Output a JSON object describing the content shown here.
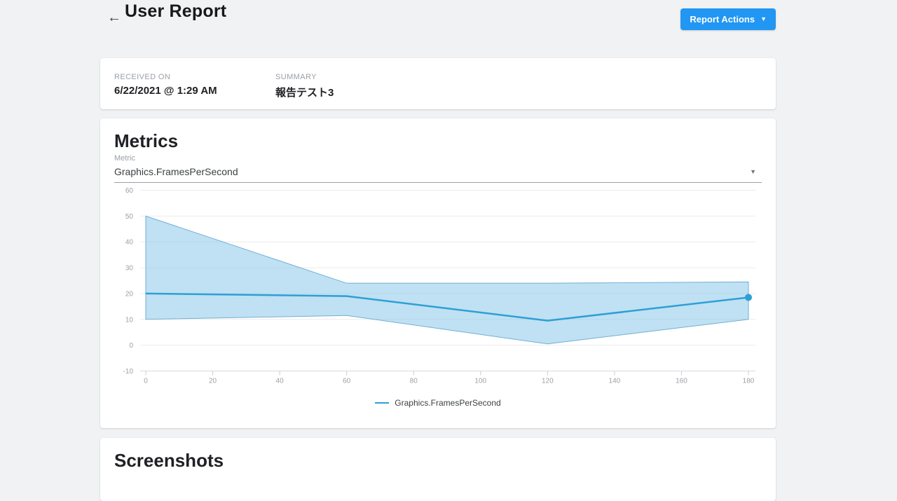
{
  "header": {
    "back_icon": "←",
    "title": "User Report",
    "report_actions_label": "Report Actions",
    "caret_icon": "▼",
    "button_color": "#2196f3"
  },
  "info_card": {
    "received_on_label": "RECEIVED ON",
    "received_on_value": "6/22/2021 @ 1:29 AM",
    "summary_label": "SUMMARY",
    "summary_value": "報告テスト3"
  },
  "metrics_card": {
    "title": "Metrics",
    "metric_field_label": "Metric",
    "metric_selected_value": "Graphics.FramesPerSecond",
    "dropdown_icon": "▼"
  },
  "chart_data": {
    "type": "line",
    "title": "",
    "xlabel": "",
    "ylabel": "",
    "x": [
      0,
      60,
      120,
      180
    ],
    "series": [
      {
        "name": "Graphics.FramesPerSecond",
        "values": [
          20,
          19,
          9.5,
          18.5
        ]
      }
    ],
    "band": {
      "name": "min-max-range",
      "upper": [
        50,
        24,
        24,
        24.5
      ],
      "lower": [
        10,
        11.5,
        0.5,
        10
      ]
    },
    "x_ticks": [
      0,
      20,
      40,
      60,
      80,
      100,
      120,
      140,
      160,
      180
    ],
    "y_ticks": [
      -10,
      0,
      10,
      20,
      30,
      40,
      50,
      60
    ],
    "xlim": [
      0,
      180
    ],
    "ylim": [
      -10,
      60
    ],
    "grid": "horizontal",
    "legend_position": "bottom",
    "end_dot": true,
    "colors": {
      "line": "#2e9fd6",
      "band_fill": "#7fc3e8",
      "band_fill_opacity": 0.5,
      "band_edge": "#72afd3",
      "grid": "#ececee",
      "axis_line": "#d9d9db",
      "tick_mark": "#cccccc",
      "tick_text": "#9aa0a6"
    }
  },
  "screenshots_card": {
    "title": "Screenshots"
  }
}
